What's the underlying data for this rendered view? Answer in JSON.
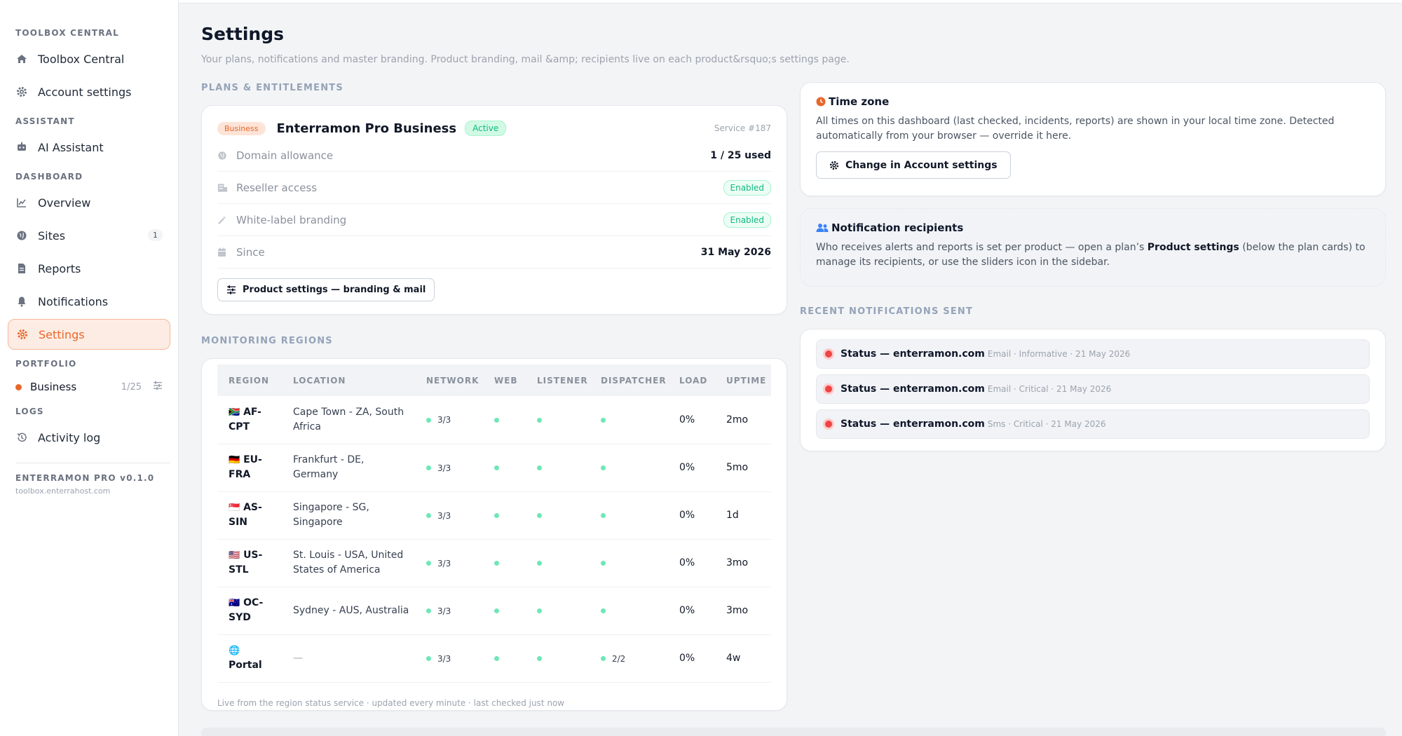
{
  "sidebar": {
    "sections": [
      {
        "title": "TOOLBOX CENTRAL",
        "items": [
          {
            "label": "Toolbox Central",
            "icon": "home-icon"
          },
          {
            "label": "Account settings",
            "icon": "gear-icon"
          }
        ]
      },
      {
        "title": "ASSISTANT",
        "items": [
          {
            "label": "AI Assistant",
            "icon": "robot-icon"
          }
        ]
      },
      {
        "title": "DASHBOARD",
        "items": [
          {
            "label": "Overview",
            "icon": "chart-line-icon"
          },
          {
            "label": "Sites",
            "icon": "globe-icon",
            "badge": "1"
          },
          {
            "label": "Reports",
            "icon": "file-icon"
          },
          {
            "label": "Notifications",
            "icon": "bell-icon"
          },
          {
            "label": "Settings",
            "icon": "gear-icon",
            "active": true
          }
        ]
      }
    ],
    "portfolio_title": "PORTFOLIO",
    "portfolio_item": {
      "label": "Business",
      "count": "1/25"
    },
    "logs_title": "LOGS",
    "logs_item": {
      "label": "Activity log",
      "icon": "history-icon"
    },
    "version": "ENTERRAMON PRO v0.1.0",
    "host": "toolbox.enterrahost.com"
  },
  "page": {
    "title": "Settings",
    "subtitle": "Your plans, notifications and master branding. Product branding, mail &amp; recipients live on each product&rsquo;s settings page."
  },
  "plans": {
    "section_label": "PLANS & ENTITLEMENTS",
    "tier_badge": "Business",
    "name": "Enterramon Pro Business",
    "status_badge": "Active",
    "service_id": "Service #187",
    "rows": [
      {
        "label": "Domain allowance",
        "value": "1 / 25 used",
        "icon": "globe-icon"
      },
      {
        "label": "Reseller access",
        "badge": "Enabled",
        "icon": "store-icon"
      },
      {
        "label": "White-label branding",
        "badge": "Enabled",
        "icon": "wand-icon"
      },
      {
        "label": "Since",
        "value": "31 May 2026",
        "icon": "calendar-icon"
      }
    ],
    "product_settings_button": "Product settings — branding & mail"
  },
  "monitoring": {
    "section_label": "MONITORING REGIONS",
    "columns": [
      "REGION",
      "LOCATION",
      "NETWORK",
      "WEB",
      "LISTENER",
      "DISPATCHER",
      "LOAD",
      "UPTIME"
    ],
    "rows": [
      {
        "flag": "🇿🇦",
        "code": "AF-",
        "code2": "CPT",
        "loc1": "Cape Town - ZA, South",
        "loc2": "Africa",
        "network": "3/3",
        "dispatcher": "",
        "load": "0%",
        "uptime": "2mo"
      },
      {
        "flag": "🇩🇪",
        "code": "EU-",
        "code2": "FRA",
        "loc1": "Frankfurt - DE,",
        "loc2": "Germany",
        "network": "3/3",
        "dispatcher": "",
        "load": "0%",
        "uptime": "5mo"
      },
      {
        "flag": "🇸🇬",
        "code": "AS-",
        "code2": "SIN",
        "loc1": "Singapore - SG,",
        "loc2": "Singapore",
        "network": "3/3",
        "dispatcher": "",
        "load": "0%",
        "uptime": "1d"
      },
      {
        "flag": "🇺🇸",
        "code": "US-",
        "code2": "STL",
        "loc1": "St. Louis - USA, United",
        "loc2": "States of America",
        "network": "3/3",
        "dispatcher": "",
        "load": "0%",
        "uptime": "3mo"
      },
      {
        "flag": "🇦🇺",
        "code": "OC-",
        "code2": "SYD",
        "loc1": "Sydney - AUS, Australia",
        "loc2": "",
        "network": "3/3",
        "dispatcher": "",
        "load": "0%",
        "uptime": "3mo"
      },
      {
        "flag": "🌐",
        "code": "",
        "code2": "Portal",
        "loc1": "—",
        "loc2": "",
        "network": "3/3",
        "dispatcher": "2/2",
        "load": "0%",
        "uptime": "4w"
      }
    ],
    "footer": "Live from the region status service · updated every minute · last checked just now"
  },
  "timezone": {
    "title": "Time zone",
    "text": "All times on this dashboard (last checked, incidents, reports) are shown in your local time zone. Detected automatically from your browser — override it here.",
    "button": "Change in Account settings"
  },
  "recipients": {
    "title": "Notification recipients",
    "text_before": "Who receives alerts and reports is set per product — open a plan’s ",
    "text_bold": "Product settings",
    "text_after": " (below the plan cards) to manage its recipients, or use the sliders icon in the sidebar."
  },
  "recent": {
    "section_label": "RECENT NOTIFICATIONS SENT",
    "items": [
      {
        "title": "Status — enterramon.com",
        "meta": "Email · Informative · 21 May 2026"
      },
      {
        "title": "Status — enterramon.com",
        "meta": "Email · Critical · 21 May 2026"
      },
      {
        "title": "Status — enterramon.com",
        "meta": "Sms · Critical · 21 May 2026"
      }
    ]
  },
  "colors": {
    "accent": "#e8672a",
    "success": "#10b981",
    "danger": "#ef4444"
  }
}
